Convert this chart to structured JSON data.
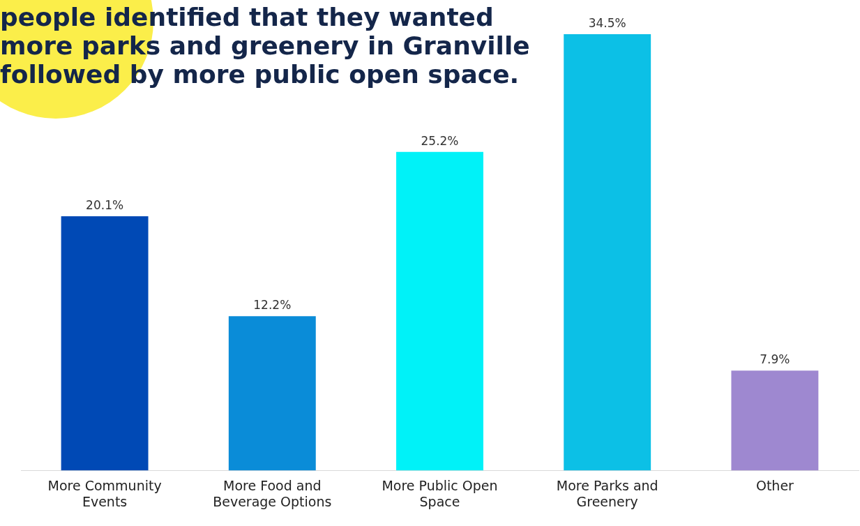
{
  "chart_data": {
    "type": "bar",
    "title": "people identified that they wanted more parks and greenery in Granville followed by more public open space.",
    "categories": [
      "More Community Events",
      "More Food and Beverage Options",
      "More Public Open Space",
      "More Parks and Greenery",
      "Other"
    ],
    "values": [
      20.1,
      12.2,
      25.2,
      34.5,
      7.9
    ],
    "colors": [
      "#0049b5",
      "#0a8cd8",
      "#00f2f8",
      "#0cc0e6",
      "#9e88d0"
    ],
    "value_labels": [
      "20.1%",
      "12.2%",
      "25.2%",
      "34.5%",
      "7.9%"
    ],
    "grid": false,
    "legend": false
  }
}
